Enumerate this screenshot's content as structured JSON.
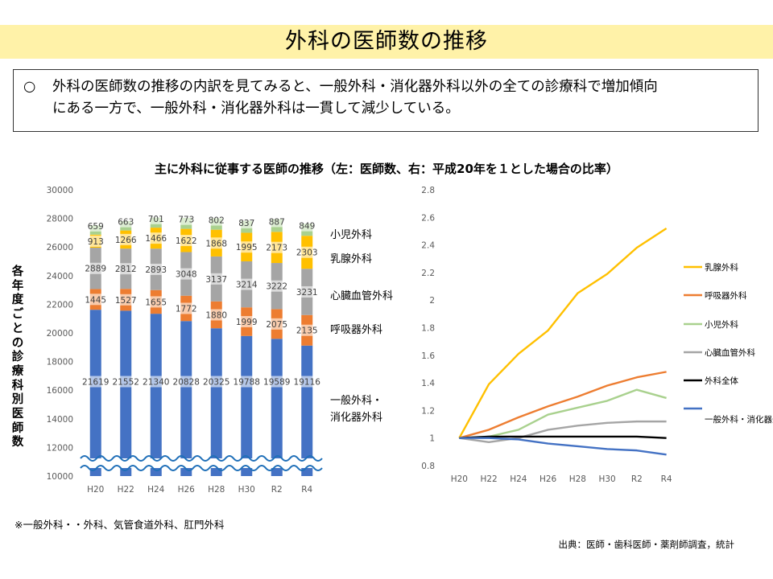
{
  "header": {
    "title": "外科の医師数の推移"
  },
  "summary": {
    "bullet": "○",
    "line1": "外科の医師数の推移の内訳を見てみると、一般外科・消化器外科以外の全ての診療科で増加傾向",
    "line2": "にある一方で、一般外科・消化器外科は一貫して減少している。"
  },
  "chart_title": "主に外科に従事する医師の推移（左：医師数、右：平成20年を１とした場合の比率）",
  "y_axis_label": "各年度ごとの診療科別医師数",
  "footnote": "※一般外科・・外科、気管食道外科、肛門外科",
  "source": "出典：医師・歯科医師・薬剤師調査，統計",
  "colors": {
    "general": "#4472c4",
    "respiratory": "#ed7d31",
    "cardio": "#a5a5a5",
    "breast": "#ffc000",
    "pediatric": "#a9d18e",
    "overall": "#000000"
  },
  "chart_data": [
    {
      "type": "bar",
      "stacked": true,
      "y_axis_broken": true,
      "categories": [
        "H20",
        "H22",
        "H24",
        "H26",
        "H28",
        "H30",
        "R2",
        "R4"
      ],
      "ylim": [
        10000,
        30000
      ],
      "yticks": [
        10000,
        12000,
        14000,
        16000,
        18000,
        20000,
        22000,
        24000,
        26000,
        28000,
        30000
      ],
      "series": [
        {
          "name": "一般外科・消化器外科",
          "color_key": "general",
          "values": [
            21619,
            21552,
            21340,
            20828,
            20325,
            19788,
            19589,
            19116
          ]
        },
        {
          "name": "呼吸器外科",
          "color_key": "respiratory",
          "values": [
            1445,
            1527,
            1655,
            1772,
            1880,
            1999,
            2075,
            2135
          ]
        },
        {
          "name": "心臓血管外科",
          "color_key": "cardio",
          "values": [
            2889,
            2812,
            2893,
            3048,
            3137,
            3214,
            3222,
            3231
          ]
        },
        {
          "name": "乳腺外科",
          "color_key": "breast",
          "values": [
            913,
            1266,
            1466,
            1622,
            1868,
            1995,
            2173,
            2303
          ]
        },
        {
          "name": "小児外科",
          "color_key": "pediatric",
          "values": [
            659,
            663,
            701,
            773,
            802,
            837,
            887,
            849
          ]
        }
      ],
      "legend": [
        "小児外科",
        "乳腺外科",
        "心臓血管外科",
        "呼吸器外科",
        "一般外科・消化器外科"
      ],
      "legend_placement": "right"
    },
    {
      "type": "line",
      "categories": [
        "H20",
        "H22",
        "H24",
        "H26",
        "H28",
        "H30",
        "R2",
        "R4"
      ],
      "ylim": [
        0.8,
        2.8
      ],
      "yticks": [
        0.8,
        1,
        1.2,
        1.4,
        1.6,
        1.8,
        2,
        2.2,
        2.4,
        2.6,
        2.8
      ],
      "series": [
        {
          "name": "乳腺外科",
          "color_key": "breast",
          "values": [
            1.0,
            1.39,
            1.61,
            1.78,
            2.05,
            2.19,
            2.38,
            2.52
          ]
        },
        {
          "name": "呼吸器外科",
          "color_key": "respiratory",
          "values": [
            1.0,
            1.06,
            1.15,
            1.23,
            1.3,
            1.38,
            1.44,
            1.48
          ]
        },
        {
          "name": "小児外科",
          "color_key": "pediatric",
          "values": [
            1.0,
            1.01,
            1.06,
            1.17,
            1.22,
            1.27,
            1.35,
            1.29
          ]
        },
        {
          "name": "心臓血管外科",
          "color_key": "cardio",
          "values": [
            1.0,
            0.97,
            1.0,
            1.06,
            1.09,
            1.11,
            1.12,
            1.12
          ]
        },
        {
          "name": "外科全体",
          "color_key": "overall",
          "values": [
            1.0,
            1.01,
            1.01,
            1.01,
            1.01,
            1.01,
            1.01,
            1.0
          ]
        },
        {
          "name": "一般外科・消化器外科",
          "color_key": "general",
          "values": [
            1.0,
            1.0,
            0.99,
            0.96,
            0.94,
            0.92,
            0.91,
            0.88
          ]
        }
      ],
      "legend_placement": "right"
    }
  ]
}
